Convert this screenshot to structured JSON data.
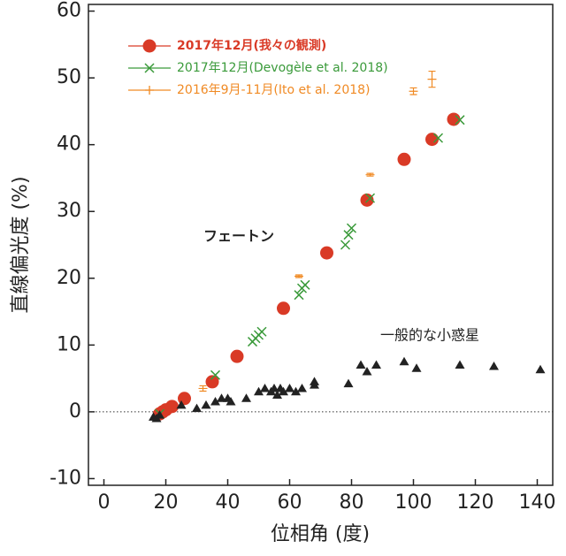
{
  "chart_data": {
    "type": "scatter",
    "x_label": "位相角 (度)",
    "y_label": "直線偏光度 (%)",
    "xlim": [
      -5,
      145
    ],
    "ylim": [
      -11,
      61
    ],
    "xticks": [
      0,
      20,
      40,
      60,
      80,
      100,
      120,
      140
    ],
    "yticks": [
      -10,
      0,
      10,
      20,
      30,
      40,
      50,
      60
    ],
    "hline": 0,
    "legend": "upper-left",
    "annotations": [
      "フェートン",
      "一般的な小惑星"
    ],
    "series": [
      {
        "name": "2017年12月(我々の観測)",
        "color": "#d93a26",
        "marker": "circle",
        "x": [
          18,
          19,
          20,
          22,
          26,
          35,
          43,
          58,
          72,
          85,
          97,
          106,
          113
        ],
        "values": [
          -0.3,
          0,
          0.3,
          0.8,
          2,
          4.5,
          8.3,
          15.5,
          23.8,
          31.7,
          37.8,
          40.8,
          43.8
        ]
      },
      {
        "name": "2017年12月(Devogèle et al. 2018)",
        "color": "#3a9a3a",
        "marker": "x",
        "x": [
          18,
          36,
          48,
          49,
          50,
          51,
          63,
          64,
          65,
          78,
          79,
          80,
          86,
          108,
          115
        ],
        "values": [
          -0.3,
          5.5,
          10.5,
          11,
          11.5,
          12,
          17.5,
          18.5,
          19,
          25,
          26.5,
          27.5,
          32,
          41,
          43.7
        ]
      },
      {
        "name": "2016年9月-11月(Ito et al. 2018)",
        "color": "#f08a24",
        "marker": "plus",
        "x": [
          32,
          63,
          86,
          100,
          106
        ],
        "values": [
          3.5,
          20.3,
          35.5,
          48,
          49.8
        ],
        "errors": [
          0.4,
          0.2,
          0.2,
          0.5,
          1.2
        ]
      },
      {
        "color": "#222222",
        "marker": "triangle",
        "x": [
          16,
          17,
          18,
          25,
          30,
          33,
          36,
          38,
          40,
          41,
          46,
          50,
          52,
          54,
          55,
          56,
          57,
          58,
          60,
          62,
          64,
          68,
          68,
          79,
          83,
          85,
          88,
          97,
          101,
          115,
          126,
          141
        ],
        "values": [
          -0.8,
          -1,
          -0.5,
          1,
          0.5,
          1,
          1.5,
          2,
          2,
          1.5,
          2,
          3,
          3.5,
          3,
          3.5,
          2.5,
          3.5,
          3,
          3.5,
          3,
          3.5,
          4,
          4.5,
          4.2,
          7,
          6,
          7,
          7.5,
          6.5,
          7,
          6.8,
          6.3
        ]
      }
    ]
  }
}
